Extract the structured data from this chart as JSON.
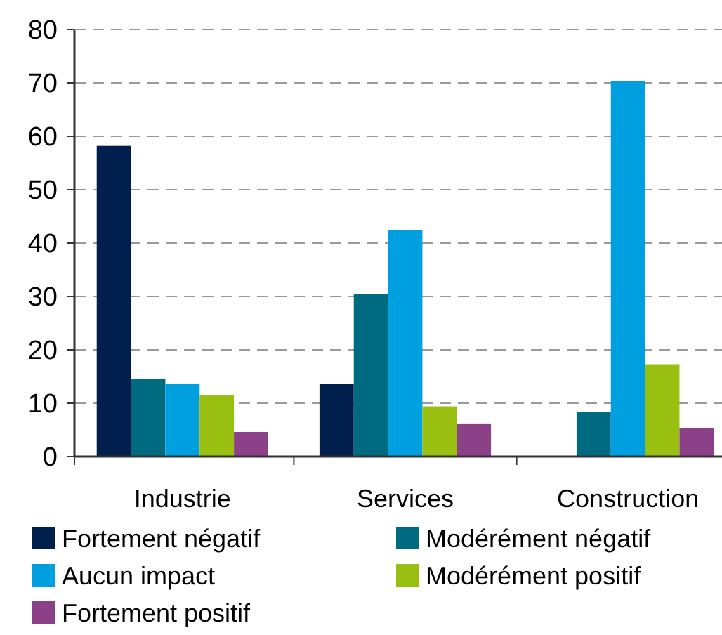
{
  "chart_data": {
    "type": "bar",
    "categories": [
      "Industrie",
      "Services",
      "Construction"
    ],
    "series": [
      {
        "name": "Fortement négatif",
        "color": "#001f4d",
        "values": [
          58.2,
          13.6,
          0
        ]
      },
      {
        "name": "Modérément négatif",
        "color": "#006b80",
        "values": [
          14.6,
          30.4,
          8.3
        ]
      },
      {
        "name": "Aucun impact",
        "color": "#009fe0",
        "values": [
          13.6,
          42.5,
          70.3
        ]
      },
      {
        "name": "Modérément positif",
        "color": "#99bf10",
        "values": [
          11.5,
          9.4,
          17.3
        ]
      },
      {
        "name": "Fortement positif",
        "color": "#8c4088",
        "values": [
          4.6,
          6.2,
          5.3
        ]
      }
    ],
    "ylim": [
      0,
      80
    ],
    "yticks": [
      0,
      10,
      20,
      30,
      40,
      50,
      60,
      70,
      80
    ],
    "grid": "y",
    "legend": "bottom"
  }
}
